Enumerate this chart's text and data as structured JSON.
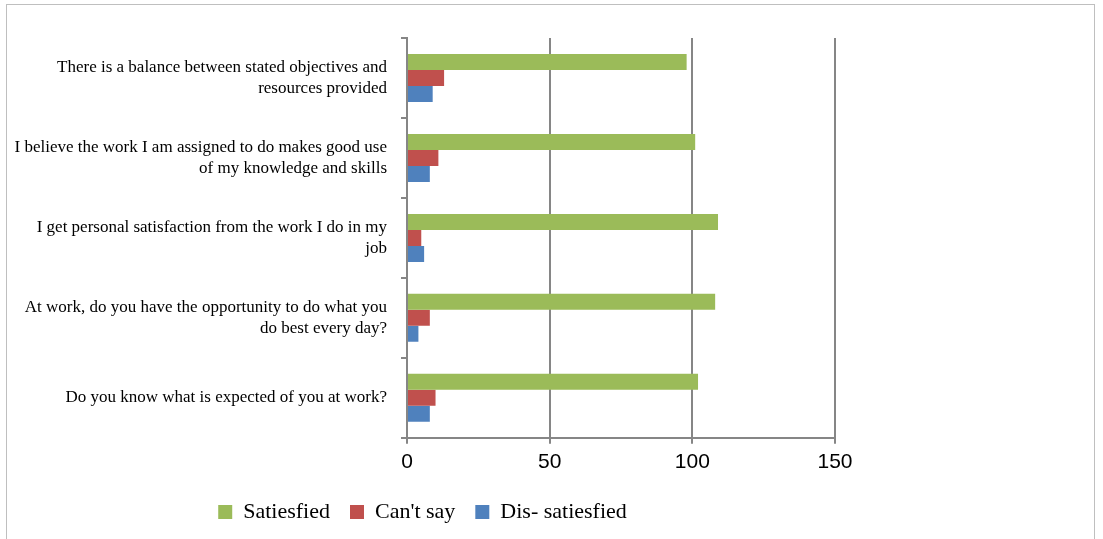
{
  "chart_data": {
    "type": "bar",
    "orientation": "horizontal",
    "categories": [
      "There is a balance between stated objectives and resources provided",
      "I believe the work I am assigned to do makes good use of my knowledge and skills",
      "I get personal satisfaction from the work I do in my job",
      "At work, do you have the opportunity to do what you do best every day?",
      "Do you know what is expected of you at work?"
    ],
    "series": [
      {
        "name": "Satiesfied",
        "color": "#9bbb59",
        "values": [
          98,
          101,
          109,
          108,
          102
        ]
      },
      {
        "name": "Can't say",
        "color": "#c0504d",
        "values": [
          13,
          11,
          5,
          8,
          10
        ]
      },
      {
        "name": "Dis- satiesfied",
        "color": "#4f81bd",
        "values": [
          9,
          8,
          6,
          4,
          8
        ]
      }
    ],
    "xlim": [
      0,
      150
    ],
    "xticks": [
      0,
      50,
      100,
      150
    ],
    "grid": "x",
    "legend": "bottom"
  }
}
